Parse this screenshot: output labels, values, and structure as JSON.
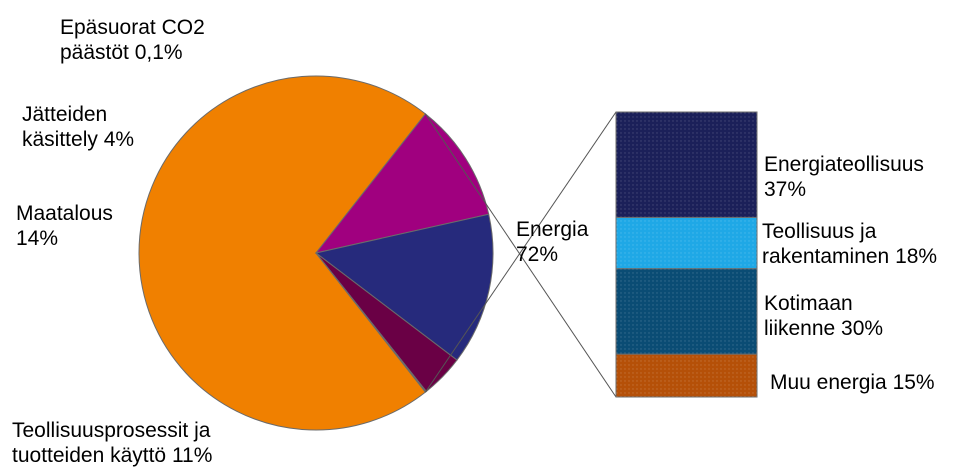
{
  "chart_data": {
    "type": "pie",
    "title": "",
    "slices": [
      {
        "label_lines": [
          "Energia",
          "72%"
        ],
        "value": 72,
        "color": "#f08000"
      },
      {
        "label_lines": [
          "Teollisuusprosessit ja",
          "tuotteiden käyttö 11%"
        ],
        "value": 11,
        "color": "#a0007f"
      },
      {
        "label_lines": [
          "Maatalous",
          "14%"
        ],
        "value": 14,
        "color": "#262a7c"
      },
      {
        "label_lines": [
          "Jätteiden",
          "käsittely 4%"
        ],
        "value": 4,
        "color": "#6a0045"
      },
      {
        "label_lines": [
          "Epäsuorat CO2",
          "päästöt 0,1%"
        ],
        "value": 0.1,
        "color": "#4a4a4a"
      }
    ],
    "breakdown": {
      "of": "Energia",
      "segments": [
        {
          "label_lines": [
            "Energiateollisuus",
            "37%"
          ],
          "value": 37,
          "color": "#1b2059"
        },
        {
          "label_lines": [
            "Teollisuus ja",
            "rakentaminen 18%"
          ],
          "value": 18,
          "color": "#1fa8e6"
        },
        {
          "label_lines": [
            "Kotimaan",
            "liikenne 30%"
          ],
          "value": 30,
          "color": "#0a4c74"
        },
        {
          "label_lines": [
            "Muu energia 15%"
          ],
          "value": 15,
          "color": "#b55008"
        }
      ]
    }
  }
}
